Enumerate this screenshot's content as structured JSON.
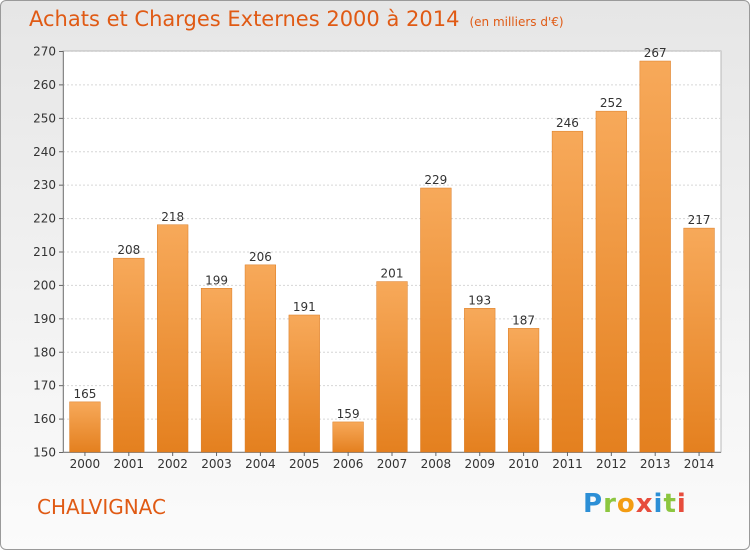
{
  "title": "Achats et Charges Externes 2000 à 2014",
  "subtitle": "(en milliers d'€)",
  "commune": "CHALVIGNAC",
  "logo": {
    "text": "Proxiti",
    "colors": [
      "#2c8fd6",
      "#8cc63f",
      "#f39c12",
      "#e74c3c",
      "#2c8fd6",
      "#8cc63f",
      "#e74c3c"
    ]
  },
  "colors": {
    "bar_top": "#f7a95a",
    "bar_bottom": "#e4801f",
    "title": "#e05a14"
  },
  "chart_data": {
    "type": "bar",
    "categories": [
      "2000",
      "2001",
      "2002",
      "2003",
      "2004",
      "2005",
      "2006",
      "2007",
      "2008",
      "2009",
      "2010",
      "2011",
      "2012",
      "2013",
      "2014"
    ],
    "values": [
      165,
      208,
      218,
      199,
      206,
      191,
      159,
      201,
      229,
      193,
      187,
      246,
      252,
      267,
      217
    ],
    "title": "Achats et Charges Externes 2000 à 2014",
    "xlabel": "",
    "ylabel": "",
    "ylim": [
      150,
      270
    ],
    "yticks": [
      150,
      160,
      170,
      180,
      190,
      200,
      210,
      220,
      230,
      240,
      250,
      260,
      270
    ],
    "grid": true
  }
}
